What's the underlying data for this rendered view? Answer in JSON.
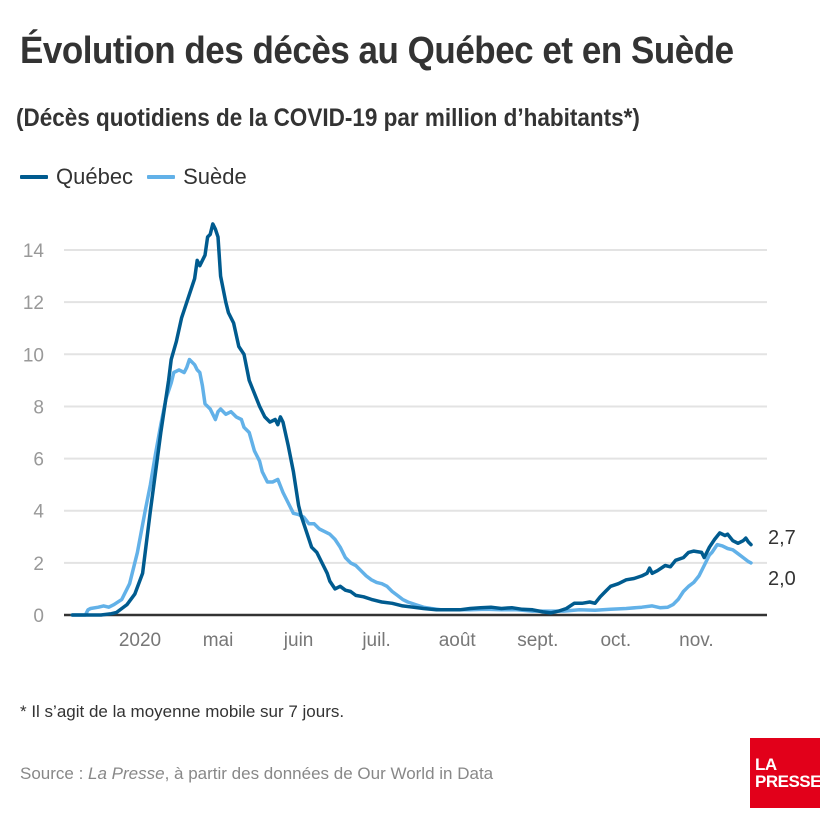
{
  "header": {
    "title": "Évolution des décès au Québec et en Suède",
    "subtitle": "(Décès quotidiens de la COVID-19 par million d’habitants*)"
  },
  "legend": [
    {
      "label": "Québec",
      "color": "#005b8f"
    },
    {
      "label": "Suède",
      "color": "#62b1e8"
    }
  ],
  "footer": {
    "footnote": "* Il s’agit de la moyenne mobile sur 7 jours.",
    "source_prefix": "Source : ",
    "source_italic": "La Presse",
    "source_suffix": ", à partir des données de Our World in Data",
    "logo_line1": "LA",
    "logo_line2": "PRESSE",
    "logo_color": "#e2001a"
  },
  "chart_data": {
    "type": "line",
    "title": "Évolution des décès au Québec et en Suède",
    "subtitle": "(Décès quotidiens de la COVID-19 par million d’habitants*)",
    "xlabel": "",
    "ylabel": "",
    "x_unit": "days since 2020-03-01",
    "xlim": [
      5,
      266
    ],
    "ylim": [
      0,
      15
    ],
    "y_ticks": [
      0,
      2,
      4,
      6,
      8,
      10,
      12,
      14
    ],
    "y_tick_labels": [
      "0",
      "2",
      "4",
      "6",
      "8",
      "10",
      "12",
      "14"
    ],
    "x_ticks": [
      {
        "day": 31,
        "label": "2020"
      },
      {
        "day": 61,
        "label": "mai"
      },
      {
        "day": 92,
        "label": "juin"
      },
      {
        "day": 122,
        "label": "juil."
      },
      {
        "day": 153,
        "label": "août"
      },
      {
        "day": 184,
        "label": "sept."
      },
      {
        "day": 214,
        "label": "oct."
      },
      {
        "day": 245,
        "label": "nov."
      }
    ],
    "grid": true,
    "legend_position": "top-left",
    "series": [
      {
        "name": "Québec",
        "color": "#005b8f",
        "end_label": "2,7",
        "points": [
          [
            5,
            0
          ],
          [
            16,
            0
          ],
          [
            20,
            0.05
          ],
          [
            22,
            0.1
          ],
          [
            26,
            0.4
          ],
          [
            29,
            0.8
          ],
          [
            32,
            1.6
          ],
          [
            35,
            4.0
          ],
          [
            37,
            5.5
          ],
          [
            39,
            7.0
          ],
          [
            42,
            9.0
          ],
          [
            43,
            9.8
          ],
          [
            45,
            10.5
          ],
          [
            47,
            11.4
          ],
          [
            48,
            11.7
          ],
          [
            50,
            12.3
          ],
          [
            52,
            12.9
          ],
          [
            53,
            13.6
          ],
          [
            54,
            13.4
          ],
          [
            56,
            13.8
          ],
          [
            57,
            14.5
          ],
          [
            58,
            14.6
          ],
          [
            59,
            15.0
          ],
          [
            60,
            14.8
          ],
          [
            61,
            14.5
          ],
          [
            62,
            13.0
          ],
          [
            64,
            12.0
          ],
          [
            65,
            11.6
          ],
          [
            67,
            11.2
          ],
          [
            69,
            10.3
          ],
          [
            71,
            10.0
          ],
          [
            73,
            9.0
          ],
          [
            75,
            8.5
          ],
          [
            77,
            8.0
          ],
          [
            79,
            7.6
          ],
          [
            81,
            7.4
          ],
          [
            83,
            7.5
          ],
          [
            84,
            7.3
          ],
          [
            85,
            7.6
          ],
          [
            86,
            7.4
          ],
          [
            88,
            6.5
          ],
          [
            90,
            5.5
          ],
          [
            92,
            4.2
          ],
          [
            93,
            3.8
          ],
          [
            95,
            3.2
          ],
          [
            97,
            2.6
          ],
          [
            99,
            2.4
          ],
          [
            101,
            2.0
          ],
          [
            103,
            1.6
          ],
          [
            104,
            1.3
          ],
          [
            106,
            1.0
          ],
          [
            108,
            1.1
          ],
          [
            110,
            0.95
          ],
          [
            112,
            0.9
          ],
          [
            114,
            0.75
          ],
          [
            117,
            0.7
          ],
          [
            120,
            0.6
          ],
          [
            124,
            0.5
          ],
          [
            128,
            0.45
          ],
          [
            132,
            0.35
          ],
          [
            136,
            0.3
          ],
          [
            140,
            0.25
          ],
          [
            145,
            0.2
          ],
          [
            150,
            0.2
          ],
          [
            154,
            0.2
          ],
          [
            158,
            0.25
          ],
          [
            162,
            0.28
          ],
          [
            166,
            0.3
          ],
          [
            170,
            0.25
          ],
          [
            174,
            0.28
          ],
          [
            178,
            0.22
          ],
          [
            182,
            0.2
          ],
          [
            186,
            0.12
          ],
          [
            189,
            0.08
          ],
          [
            192,
            0.15
          ],
          [
            195,
            0.25
          ],
          [
            198,
            0.45
          ],
          [
            201,
            0.45
          ],
          [
            204,
            0.5
          ],
          [
            206,
            0.45
          ],
          [
            208,
            0.7
          ],
          [
            210,
            0.9
          ],
          [
            212,
            1.1
          ],
          [
            215,
            1.2
          ],
          [
            218,
            1.35
          ],
          [
            221,
            1.4
          ],
          [
            224,
            1.5
          ],
          [
            226,
            1.6
          ],
          [
            227,
            1.8
          ],
          [
            228,
            1.6
          ],
          [
            230,
            1.7
          ],
          [
            233,
            1.9
          ],
          [
            235,
            1.85
          ],
          [
            237,
            2.1
          ],
          [
            240,
            2.2
          ],
          [
            242,
            2.4
          ],
          [
            244,
            2.45
          ],
          [
            247,
            2.4
          ],
          [
            248,
            2.2
          ],
          [
            250,
            2.6
          ],
          [
            252,
            2.9
          ],
          [
            254,
            3.15
          ],
          [
            256,
            3.05
          ],
          [
            257,
            3.1
          ],
          [
            259,
            2.85
          ],
          [
            261,
            2.75
          ],
          [
            263,
            2.85
          ],
          [
            264,
            2.95
          ],
          [
            265,
            2.8
          ],
          [
            266,
            2.7
          ]
        ]
      },
      {
        "name": "Suède",
        "color": "#62b1e8",
        "end_label": "2,0",
        "points": [
          [
            5,
            0
          ],
          [
            10,
            0
          ],
          [
            11,
            0.2
          ],
          [
            12,
            0.25
          ],
          [
            15,
            0.3
          ],
          [
            17,
            0.35
          ],
          [
            19,
            0.3
          ],
          [
            21,
            0.4
          ],
          [
            24,
            0.6
          ],
          [
            27,
            1.2
          ],
          [
            30,
            2.4
          ],
          [
            33,
            4.0
          ],
          [
            35,
            5.0
          ],
          [
            37,
            6.2
          ],
          [
            39,
            7.3
          ],
          [
            41,
            8.3
          ],
          [
            43,
            8.9
          ],
          [
            44,
            9.3
          ],
          [
            46,
            9.4
          ],
          [
            48,
            9.3
          ],
          [
            49,
            9.5
          ],
          [
            50,
            9.8
          ],
          [
            52,
            9.6
          ],
          [
            53,
            9.4
          ],
          [
            54,
            9.3
          ],
          [
            55,
            8.8
          ],
          [
            56,
            8.1
          ],
          [
            58,
            7.9
          ],
          [
            60,
            7.5
          ],
          [
            61,
            7.8
          ],
          [
            62,
            7.9
          ],
          [
            64,
            7.7
          ],
          [
            66,
            7.8
          ],
          [
            68,
            7.6
          ],
          [
            70,
            7.5
          ],
          [
            71,
            7.2
          ],
          [
            73,
            7.0
          ],
          [
            75,
            6.3
          ],
          [
            77,
            5.9
          ],
          [
            78,
            5.5
          ],
          [
            80,
            5.1
          ],
          [
            82,
            5.1
          ],
          [
            84,
            5.2
          ],
          [
            86,
            4.7
          ],
          [
            88,
            4.3
          ],
          [
            90,
            3.9
          ],
          [
            92,
            3.85
          ],
          [
            94,
            3.75
          ],
          [
            96,
            3.5
          ],
          [
            98,
            3.5
          ],
          [
            100,
            3.3
          ],
          [
            102,
            3.2
          ],
          [
            104,
            3.1
          ],
          [
            106,
            2.9
          ],
          [
            108,
            2.6
          ],
          [
            110,
            2.2
          ],
          [
            112,
            2.0
          ],
          [
            114,
            1.9
          ],
          [
            116,
            1.7
          ],
          [
            118,
            1.5
          ],
          [
            120,
            1.35
          ],
          [
            122,
            1.25
          ],
          [
            124,
            1.2
          ],
          [
            126,
            1.1
          ],
          [
            128,
            0.9
          ],
          [
            130,
            0.75
          ],
          [
            132,
            0.6
          ],
          [
            134,
            0.5
          ],
          [
            137,
            0.4
          ],
          [
            140,
            0.3
          ],
          [
            143,
            0.25
          ],
          [
            147,
            0.2
          ],
          [
            152,
            0.2
          ],
          [
            158,
            0.2
          ],
          [
            164,
            0.22
          ],
          [
            170,
            0.2
          ],
          [
            176,
            0.2
          ],
          [
            182,
            0.15
          ],
          [
            188,
            0.15
          ],
          [
            194,
            0.15
          ],
          [
            200,
            0.2
          ],
          [
            206,
            0.18
          ],
          [
            212,
            0.22
          ],
          [
            218,
            0.25
          ],
          [
            224,
            0.3
          ],
          [
            228,
            0.35
          ],
          [
            231,
            0.28
          ],
          [
            234,
            0.3
          ],
          [
            236,
            0.4
          ],
          [
            238,
            0.6
          ],
          [
            240,
            0.9
          ],
          [
            242,
            1.1
          ],
          [
            244,
            1.25
          ],
          [
            246,
            1.5
          ],
          [
            248,
            1.9
          ],
          [
            250,
            2.3
          ],
          [
            251,
            2.4
          ],
          [
            253,
            2.7
          ],
          [
            255,
            2.65
          ],
          [
            257,
            2.55
          ],
          [
            259,
            2.5
          ],
          [
            261,
            2.35
          ],
          [
            263,
            2.2
          ],
          [
            265,
            2.05
          ],
          [
            266,
            2.0
          ]
        ]
      }
    ]
  }
}
